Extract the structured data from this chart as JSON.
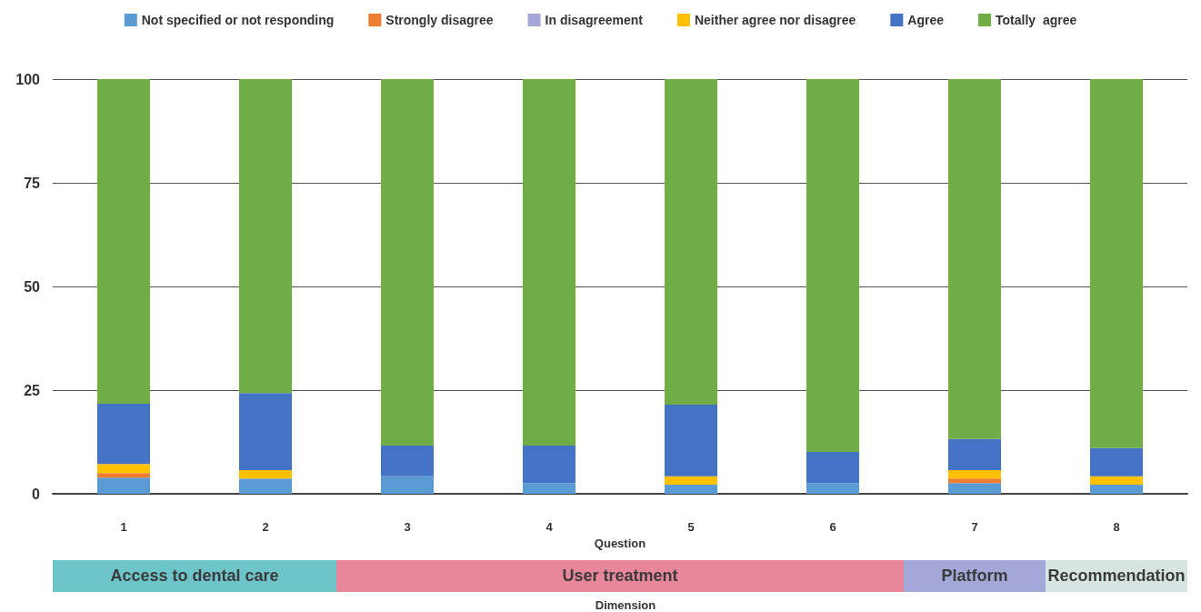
{
  "chart_data": {
    "type": "bar",
    "stacked": true,
    "xlabel": "Question",
    "categories": [
      "1",
      "2",
      "3",
      "4",
      "5",
      "6",
      "7",
      "8"
    ],
    "series": [
      {
        "name": "Not specified or not responding",
        "color": "#5b9bd5",
        "values": [
          3.9,
          3.7,
          4.2,
          2.6,
          2.2,
          2.6,
          2.6,
          2.2
        ]
      },
      {
        "name": "Strongly disagree",
        "color": "#ed7d31",
        "values": [
          1.1,
          0,
          0,
          0,
          0,
          0,
          1.1,
          0
        ]
      },
      {
        "name": "In disagreement",
        "color": "#a5a5d8",
        "values": [
          0,
          0,
          0,
          0,
          0,
          0,
          0,
          0
        ]
      },
      {
        "name": "Neither agree nor disagree",
        "color": "#ffc000",
        "values": [
          2.2,
          2,
          0,
          0,
          2,
          0,
          2,
          2
        ]
      },
      {
        "name": "Agree",
        "color": "#4472c4",
        "values": [
          14.5,
          18.6,
          7.4,
          9,
          17.3,
          7.5,
          7.5,
          6.8
        ]
      },
      {
        "name": "Totally  agree",
        "color": "#70ad47",
        "values": [
          78.3,
          75.7,
          88.4,
          88.4,
          78.5,
          89.9,
          86.8,
          89
        ]
      }
    ],
    "ylim": [
      0,
      100
    ],
    "yticks": [
      0,
      25,
      50,
      75,
      100
    ],
    "grid": "y",
    "legend": "top",
    "annotations": [
      "Access to dental care",
      "User treatment",
      "Platform",
      "Recommendation",
      "Dimension"
    ]
  }
}
